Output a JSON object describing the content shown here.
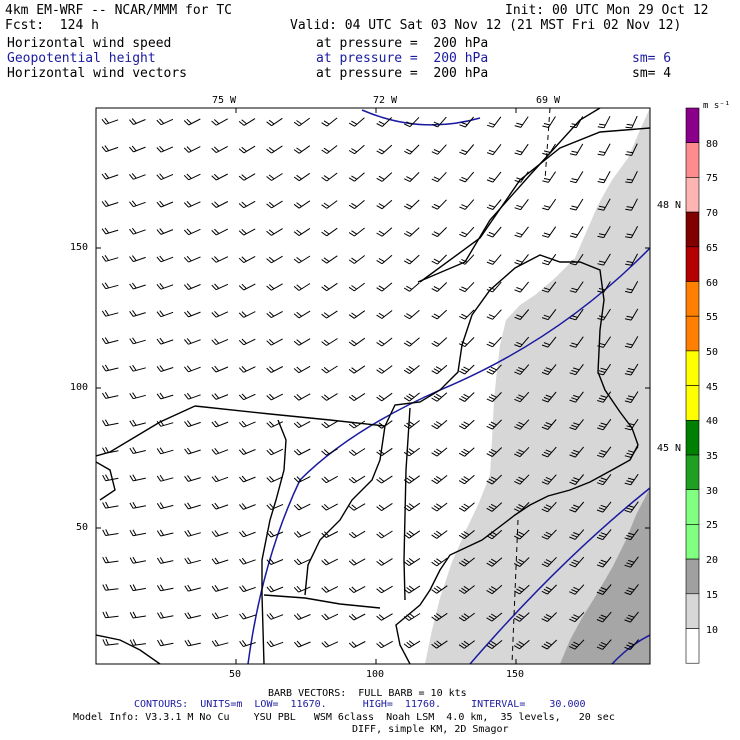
{
  "header": {
    "model": "4km EM-WRF -- NCAR/MMM for TC",
    "init": "Init: 00 UTC Mon 29 Oct 12",
    "fcst": "Fcst:  124 h",
    "valid": "Valid: 04 UTC Sat 03 Nov 12 (21 MST Fri 02 Nov 12)"
  },
  "fields": [
    {
      "name": "Horizontal wind speed",
      "level": "at pressure =  200 hPa",
      "sm": "",
      "color": "#000000"
    },
    {
      "name": "Geopotential height",
      "level": "at pressure =  200 hPa",
      "sm": "sm= 6",
      "color": "#1a1aa0"
    },
    {
      "name": "Horizontal wind vectors",
      "level": "at pressure =  200 hPa",
      "sm": "sm= 4",
      "color": "#000000"
    }
  ],
  "map": {
    "lon_labels": [
      "75 W",
      "72 W",
      "69 W"
    ],
    "lat_labels": [
      "48 N",
      "45 N"
    ],
    "y_ticks": [
      "150",
      "100",
      "50"
    ],
    "x_ticks": [
      "50",
      "100",
      "150"
    ]
  },
  "colorbar": {
    "unit": "m s⁻¹",
    "levels": [
      "80",
      "75",
      "70",
      "65",
      "60",
      "55",
      "50",
      "45",
      "40",
      "35",
      "30",
      "25",
      "20",
      "15",
      "10"
    ],
    "colors": [
      "#8b008b",
      "#ff8c8c",
      "#ffb4b4",
      "#800000",
      "#b40000",
      "#ff8000",
      "#ff8000",
      "#ffff00",
      "#ffff00",
      "#008000",
      "#20a020",
      "#80ff80",
      "#80ff80",
      "#a0a0a0",
      "#d7d7d7",
      "#ffffff"
    ]
  },
  "footer": {
    "barb": "BARB VECTORS:  FULL BARB = 10 kts",
    "contours_prefix": "CONTOURS:  UNITS=m  LOW=  11670.      HIGH=  11760.     INTERVAL=    30.000",
    "model_info": "Model Info: V3.3.1 M No Cu    YSU PBL   WSM 6class  Noah LSM  4.0 km,  35 levels,   20 sec",
    "diff": "DIFF, simple KM, 2D Smagor"
  }
}
